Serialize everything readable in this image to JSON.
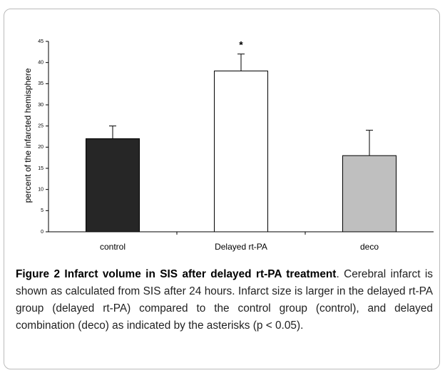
{
  "chart_data": {
    "type": "bar",
    "y_label": "percent of the infarcted hemisphere",
    "categories": [
      "control",
      "Delayed rt-PA",
      "deco"
    ],
    "values": [
      22,
      38,
      18
    ],
    "errors": [
      3,
      4,
      6
    ],
    "colors": [
      "#262626",
      "#ffffff",
      "#bfbfbf"
    ],
    "significance": [
      null,
      "*",
      null
    ],
    "ylim": [
      0,
      45
    ],
    "yticks": [
      0,
      5,
      10,
      15,
      20,
      25,
      30,
      35,
      40,
      45
    ],
    "caption_title": "Figure 2 Infarct volume in SIS after delayed rt-PA treatment",
    "caption_text": ". Cerebral infarct is shown as calculated from SIS after 24 hours. Infarct size is larger in the delayed rt-PA group (delayed rt-PA) compared to the control group (control), and delayed combination (deco) as indicated by the asterisks (p < 0.05)."
  }
}
